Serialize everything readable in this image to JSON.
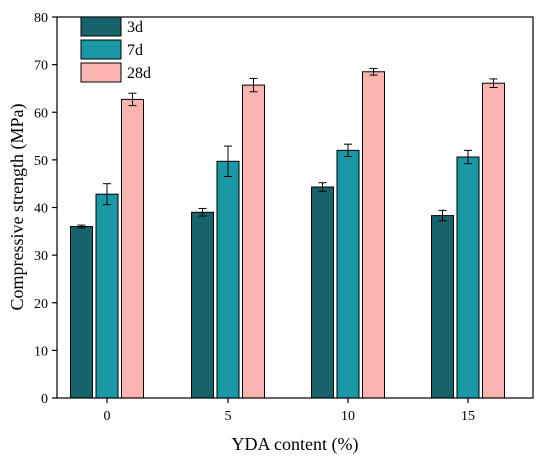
{
  "chart_data": {
    "type": "bar",
    "title": "",
    "xlabel": "YDA content (%)",
    "ylabel": "Compressive strength (MPa)",
    "categories": [
      "0",
      "5",
      "10",
      "15"
    ],
    "ylim": [
      0,
      80
    ],
    "yticks": [
      0,
      10,
      20,
      30,
      40,
      50,
      60,
      70,
      80
    ],
    "grid": false,
    "legend_position": "top-left",
    "series": [
      {
        "name": "3d",
        "color": "#16636b",
        "values": [
          36.0,
          39.0,
          44.3,
          38.3
        ],
        "errors": [
          0.3,
          0.8,
          0.9,
          1.1
        ]
      },
      {
        "name": "7d",
        "color": "#1a98a6",
        "values": [
          42.8,
          49.7,
          52.0,
          50.6
        ],
        "errors": [
          2.2,
          3.2,
          1.3,
          1.4
        ]
      },
      {
        "name": "28d",
        "color": "#fbb4b0",
        "values": [
          62.7,
          65.7,
          68.5,
          66.1
        ],
        "errors": [
          1.3,
          1.4,
          0.7,
          0.9
        ]
      }
    ]
  }
}
